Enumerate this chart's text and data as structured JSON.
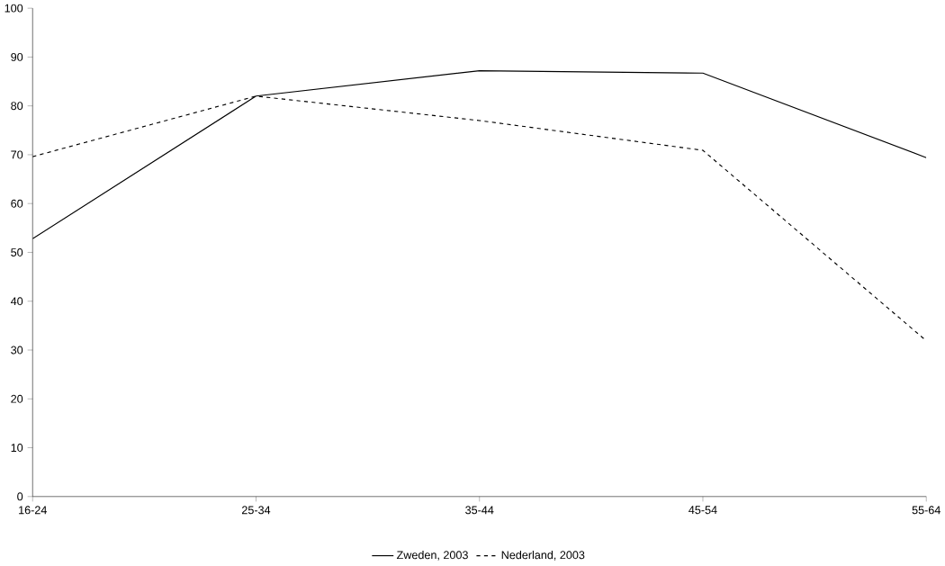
{
  "chart_data": {
    "type": "line",
    "categories": [
      "16-24",
      "25-34",
      "35-44",
      "45-54",
      "55-64"
    ],
    "series": [
      {
        "name": "Zweden, 2003",
        "color": "#000000",
        "line_style": "solid",
        "values": [
          52.8,
          82.0,
          87.2,
          86.7,
          69.4
        ]
      },
      {
        "name": "Nederland, 2003",
        "color": "#000000",
        "line_style": "dashed",
        "values": [
          69.6,
          82.0,
          77.0,
          70.9,
          31.9
        ]
      }
    ],
    "ylim": [
      0,
      100
    ],
    "yticks": [
      0,
      10,
      20,
      30,
      40,
      50,
      60,
      70,
      80,
      90,
      100
    ],
    "grid": false,
    "legend": "bottom",
    "marker": "none"
  }
}
